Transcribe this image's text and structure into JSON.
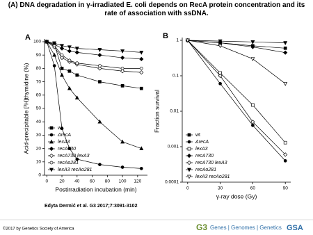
{
  "header": {
    "title": "(A) DNA degradation in γ-irradiated E. coli depends on RecA protein concentration and its rate of association with ssDNA."
  },
  "chart_data": [
    {
      "type": "line",
      "panel_label": "A",
      "x_label": "Postirradiation incubation (min)",
      "y_label": "Acid-precipitable [³H]thymidine (%)",
      "x": [
        0,
        10,
        20,
        30,
        40,
        70,
        100,
        125
      ],
      "xlim": [
        -3,
        133
      ],
      "xticks": [
        0,
        20,
        40,
        60,
        80,
        100,
        120
      ],
      "ylim": [
        0,
        100
      ],
      "yticks": [
        0,
        10,
        20,
        30,
        40,
        50,
        60,
        70,
        80,
        90,
        100
      ],
      "log_y": false,
      "legend": "lower left",
      "series": [
        {
          "name": "wt",
          "color": "#000000",
          "marker": "square",
          "filled": true,
          "values": [
            100,
            98,
            80,
            78,
            75,
            70,
            67,
            65
          ]
        },
        {
          "name": "ΔrecA",
          "color": "#000000",
          "marker": "circle",
          "filled": true,
          "values": [
            100,
            82,
            35,
            20,
            12,
            8,
            6,
            5
          ]
        },
        {
          "name": "lexA3",
          "color": "#000000",
          "marker": "triangle",
          "filled": true,
          "values": [
            100,
            90,
            75,
            65,
            58,
            40,
            25,
            20
          ]
        },
        {
          "name": "recA730",
          "color": "#000000",
          "marker": "diamond",
          "filled": true,
          "values": [
            100,
            98,
            95,
            93,
            92,
            90,
            88,
            87
          ]
        },
        {
          "name": "recA730 lexA3",
          "color": "#000000",
          "marker": "diamond",
          "filled": false,
          "values": [
            100,
            96,
            88,
            85,
            83,
            80,
            78,
            77
          ]
        },
        {
          "name": "recAo281",
          "color": "#000000",
          "marker": "circle",
          "filled": false,
          "values": [
            100,
            97,
            90,
            86,
            84,
            82,
            80,
            80
          ]
        },
        {
          "name": "lexA3 recAo281",
          "color": "#000000",
          "marker": "triangle-down",
          "filled": true,
          "values": [
            100,
            99,
            97,
            96,
            95,
            94,
            93,
            92
          ]
        }
      ]
    },
    {
      "type": "line",
      "panel_label": "B",
      "x_label": "γ-ray dose (Gy)",
      "y_label": "Fraction survival",
      "x": [
        0,
        30,
        60,
        90
      ],
      "xlim": [
        -5,
        95
      ],
      "xticks": [
        0,
        30,
        60,
        90
      ],
      "ylim": [
        0.0001,
        1
      ],
      "yticks": [
        0.0001,
        0.001,
        0.01,
        0.1,
        1
      ],
      "log_y": true,
      "legend": "lower left",
      "series": [
        {
          "name": "wt",
          "color": "#000000",
          "marker": "square",
          "filled": true,
          "values": [
            1,
            0.85,
            0.7,
            0.6
          ]
        },
        {
          "name": "ΔrecA",
          "color": "#000000",
          "marker": "circle",
          "filled": true,
          "values": [
            1,
            0.06,
            0.004,
            0.0004
          ]
        },
        {
          "name": "lexA3",
          "color": "#000000",
          "marker": "square",
          "filled": false,
          "values": [
            1,
            0.12,
            0.015,
            0.0013
          ]
        },
        {
          "name": "recA730",
          "color": "#000000",
          "marker": "diamond",
          "filled": true,
          "values": [
            1,
            0.85,
            0.65,
            0.45
          ]
        },
        {
          "name": "recA730 lexA3",
          "color": "#000000",
          "marker": "diamond",
          "filled": false,
          "values": [
            1,
            0.1,
            0.005,
            0.0006
          ]
        },
        {
          "name": "recAo281",
          "color": "#000000",
          "marker": "triangle-down",
          "filled": true,
          "values": [
            1,
            0.95,
            0.9,
            0.85
          ]
        },
        {
          "name": "lexA3 recAo281",
          "color": "#000000",
          "marker": "triangle-down",
          "filled": false,
          "values": [
            1,
            0.7,
            0.3,
            0.06
          ]
        }
      ]
    }
  ],
  "footer": {
    "citation": "Edyta Dermić et al. G3 2017;7:3091-3102",
    "copyright": "©2017 by Genetics Society of America",
    "logo_g3": "G3",
    "logo_text": "Genes | Genomes | Genetics",
    "logo_gsa": "GSA"
  }
}
